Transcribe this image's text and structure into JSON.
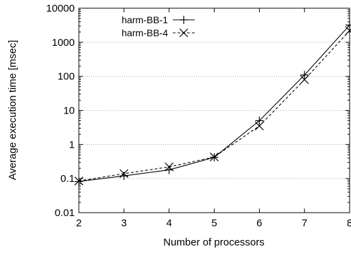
{
  "chart_data": {
    "type": "line",
    "title": "",
    "xlabel": "Number of processors",
    "ylabel": "Average execution time [msec]",
    "x": [
      2,
      3,
      4,
      5,
      6,
      7,
      8
    ],
    "xticks": [
      "2",
      "3",
      "4",
      "5",
      "6",
      "7",
      "8"
    ],
    "xlim": [
      2,
      8
    ],
    "yscale": "log",
    "ylim": [
      0.01,
      10000
    ],
    "yticks": [
      0.01,
      0.1,
      1,
      10,
      100,
      1000,
      10000
    ],
    "ytick_labels": [
      "0.01",
      "0.1",
      "1",
      "10",
      "100",
      "1000",
      "10000"
    ],
    "grid": "horizontal",
    "legend": "top-left",
    "series": [
      {
        "name": "harm-BB-1",
        "values": [
          0.082,
          0.12,
          0.18,
          0.42,
          5.0,
          110,
          3200
        ],
        "marker": "plus",
        "line": "solid",
        "color": "#000000"
      },
      {
        "name": "harm-BB-4",
        "values": [
          0.085,
          0.14,
          0.22,
          0.43,
          3.5,
          80,
          2200
        ],
        "marker": "cross",
        "line": "dashed",
        "color": "#000000"
      }
    ]
  }
}
